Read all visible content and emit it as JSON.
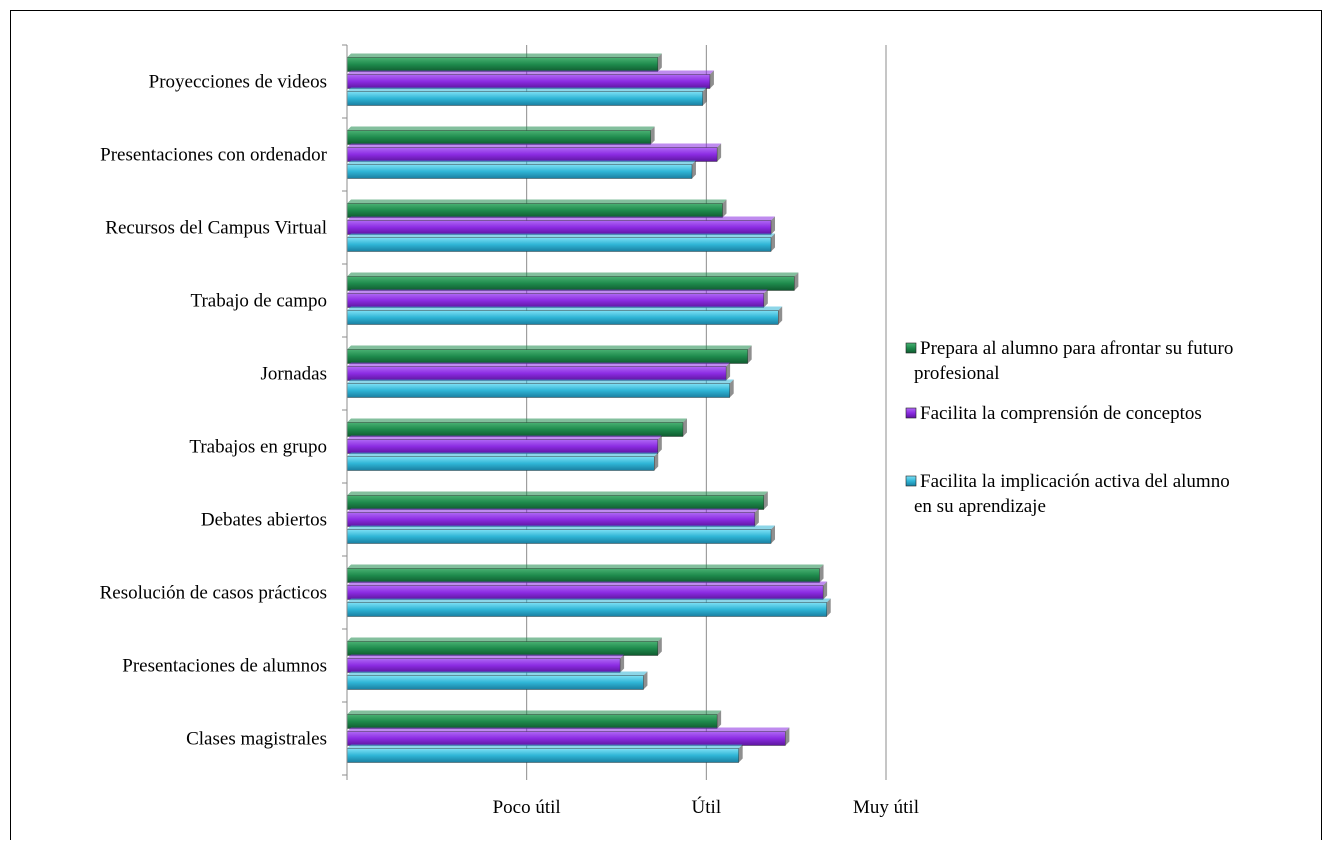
{
  "chart_data": {
    "type": "bar",
    "orientation": "horizontal",
    "categories": [
      "Proyecciones de videos",
      "Presentaciones con ordenador",
      "Recursos del Campus Virtual",
      "Trabajo de campo",
      "Jornadas",
      "Trabajos en grupo",
      "Debates abiertos",
      "Resolución de casos prácticos",
      "Presentaciones de alumnos",
      "Clases magistrales"
    ],
    "xticks": [
      {
        "value": 0,
        "label": ""
      },
      {
        "value": 1,
        "label": "Poco útil"
      },
      {
        "value": 2,
        "label": "Útil"
      },
      {
        "value": 3,
        "label": "Muy útil"
      }
    ],
    "xlim": [
      0,
      3
    ],
    "grid": true,
    "legend_position": "right",
    "series": [
      {
        "name": "Prepara al alumno para afrontar su futuro profesional",
        "legend_lines": [
          "Prepara al alumno para afrontar su futuro",
          "profesional"
        ],
        "color": "#1e8a4c",
        "values": [
          1.73,
          1.69,
          2.09,
          2.49,
          2.23,
          1.87,
          2.32,
          2.63,
          1.73,
          2.06
        ]
      },
      {
        "name": "Facilita la comprensión de conceptos",
        "legend_lines": [
          "Facilita la comprensión de conceptos"
        ],
        "color": "#8b2be2",
        "values": [
          2.02,
          2.06,
          2.36,
          2.32,
          2.11,
          1.73,
          2.27,
          2.65,
          1.52,
          2.44
        ]
      },
      {
        "name": "Facilita la implicación activa del alumno en su aprendizaje",
        "legend_lines": [
          "Facilita la implicación activa del alumno",
          "en su aprendizaje"
        ],
        "color": "#2fb5d6",
        "values": [
          1.98,
          1.92,
          2.36,
          2.4,
          2.13,
          1.71,
          2.36,
          2.67,
          1.65,
          2.18
        ]
      }
    ]
  }
}
